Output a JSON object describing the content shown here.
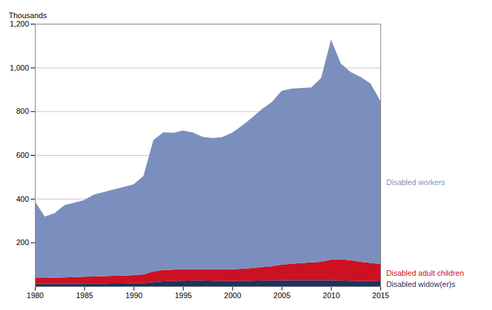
{
  "chart_data": {
    "type": "area",
    "stacked": true,
    "ylabel": "Thousands",
    "x": [
      1980,
      1981,
      1982,
      1983,
      1984,
      1985,
      1986,
      1987,
      1988,
      1989,
      1990,
      1991,
      1992,
      1993,
      1994,
      1995,
      1996,
      1997,
      1998,
      1999,
      2000,
      2001,
      2002,
      2003,
      2004,
      2005,
      2006,
      2007,
      2008,
      2009,
      2010,
      2011,
      2012,
      2013,
      2014,
      2015
    ],
    "series": [
      {
        "name": "Disabled widow(er)s",
        "color": "#1a3460",
        "values": [
          10,
          10,
          10,
          11,
          11,
          12,
          12,
          12,
          13,
          13,
          14,
          14,
          18,
          22,
          24,
          25,
          26,
          26,
          25,
          25,
          24,
          25,
          25,
          26,
          26,
          27,
          27,
          27,
          27,
          27,
          27,
          26,
          25,
          24,
          23,
          22
        ]
      },
      {
        "name": "Disabled adult children",
        "color": "#cc1122",
        "values": [
          28,
          28,
          29,
          30,
          31,
          32,
          33,
          34,
          35,
          36,
          37,
          40,
          50,
          52,
          52,
          52,
          52,
          52,
          52,
          52,
          53,
          55,
          58,
          62,
          66,
          72,
          76,
          79,
          82,
          85,
          95,
          97,
          94,
          88,
          84,
          80
        ]
      },
      {
        "name": "Disabled workers",
        "color": "#7b8fbe",
        "values": [
          350,
          280,
          295,
          330,
          340,
          350,
          375,
          385,
          395,
          405,
          415,
          450,
          600,
          630,
          625,
          635,
          625,
          605,
          600,
          605,
          625,
          655,
          688,
          722,
          750,
          795,
          800,
          800,
          800,
          840,
          1005,
          895,
          860,
          845,
          820,
          745
        ]
      }
    ],
    "xlim": [
      1980,
      2015
    ],
    "xticks": [
      1980,
      1985,
      1990,
      1995,
      2000,
      2005,
      2010,
      2015
    ],
    "ylim": [
      0,
      1200
    ],
    "yticks": [
      200,
      400,
      600,
      800,
      {
        "value": 1000,
        "label": "1,000"
      },
      {
        "value": 1200,
        "label": "1,200"
      }
    ],
    "grid": "y",
    "legend": "right"
  }
}
